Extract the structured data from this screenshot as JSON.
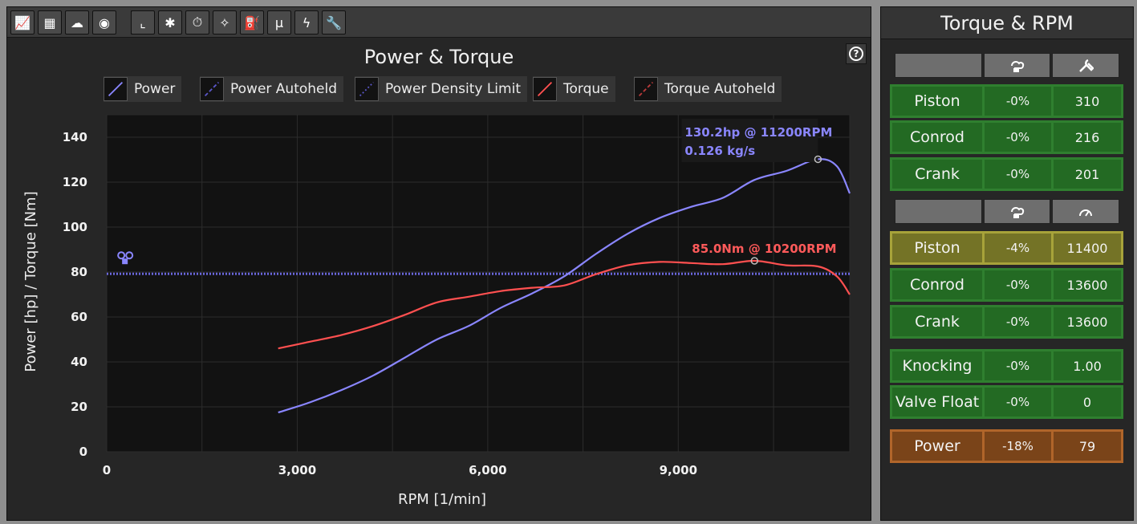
{
  "toolbar": {
    "buttons": [
      {
        "icon": "line-chart-icon",
        "glyph": "📈",
        "state": "active"
      },
      {
        "icon": "grid-chart-icon",
        "glyph": "▦",
        "state": "normal"
      },
      {
        "icon": "turbo-icon",
        "glyph": "☁",
        "state": "normal"
      },
      {
        "icon": "turbine-icon",
        "glyph": "◉",
        "state": "dim"
      },
      {
        "icon": "axes-chart-icon",
        "glyph": "⌞",
        "state": "active"
      },
      {
        "icon": "bug-icon",
        "glyph": "✱",
        "state": "normal"
      },
      {
        "icon": "stopwatch-icon",
        "glyph": "⏱",
        "state": "normal"
      },
      {
        "icon": "spark-plug-icon",
        "glyph": "✧",
        "state": "normal"
      },
      {
        "icon": "fuel-pump-icon",
        "glyph": "⛽",
        "state": "normal"
      },
      {
        "icon": "mu-icon",
        "glyph": "μ",
        "state": "normal"
      },
      {
        "icon": "lightning-icon",
        "glyph": "ϟ",
        "state": "normal"
      },
      {
        "icon": "wrench-icon",
        "glyph": "🔧",
        "state": "normal"
      }
    ]
  },
  "help": {
    "glyph": "?"
  },
  "chart": {
    "title": "Power & Torque"
  },
  "legend": [
    {
      "label": "Power",
      "color": "#8a86ff",
      "style": "solid"
    },
    {
      "label": "Power Autoheld",
      "color": "#5a56c8",
      "style": "dashed"
    },
    {
      "label": "Power Density Limit",
      "color": "#5a56c8",
      "style": "dotted"
    },
    {
      "label": "Torque",
      "color": "#ff5050",
      "style": "solid"
    },
    {
      "label": "Torque Autoheld",
      "color": "#b83a3a",
      "style": "dashed"
    }
  ],
  "chart_data": {
    "type": "line",
    "xlabel": "RPM [1/min]",
    "ylabel": "Power [hp] / Torque [Nm]",
    "xlim": [
      0,
      11700
    ],
    "ylim": [
      0,
      150
    ],
    "xticks": [
      "0",
      "3,000",
      "6,000",
      "9,000"
    ],
    "xtick_values": [
      0,
      3000,
      6000,
      9000
    ],
    "xgrid_values": [
      0,
      1500,
      3000,
      4500,
      6000,
      7500,
      9000,
      10500
    ],
    "yticks": [
      "0",
      "20",
      "40",
      "60",
      "80",
      "100",
      "120",
      "140"
    ],
    "ytick_values": [
      0,
      20,
      40,
      60,
      80,
      100,
      120,
      140
    ],
    "grid": true,
    "series": [
      {
        "name": "Power",
        "color": "#8a86ff",
        "x": [
          2700,
          3200,
          3700,
          4200,
          4700,
          5200,
          5700,
          6200,
          6700,
          7200,
          7700,
          8200,
          8700,
          9200,
          9700,
          10200,
          10700,
          11200,
          11500,
          11700
        ],
        "y": [
          17.5,
          22,
          27.5,
          34,
          42,
          50,
          56,
          64,
          70.5,
          78,
          88,
          97,
          104,
          109,
          113,
          121,
          125,
          130.2,
          127,
          115
        ]
      },
      {
        "name": "Torque",
        "color": "#ff5050",
        "x": [
          2700,
          3200,
          3700,
          4200,
          4700,
          5200,
          5700,
          6200,
          6700,
          7200,
          7700,
          8200,
          8700,
          9200,
          9700,
          10200,
          10700,
          11200,
          11500,
          11700
        ],
        "y": [
          46,
          49,
          52,
          56,
          61,
          66.5,
          69,
          71.5,
          73,
          74,
          79,
          83,
          84.5,
          84,
          83.5,
          85,
          83,
          82.5,
          78,
          70
        ]
      }
    ],
    "limit_line": {
      "name": "Power Density Limit",
      "y": 79.2,
      "color": "#6a66dd"
    },
    "annotations": [
      {
        "text": "130.2hp @ 11200RPM",
        "x": 11200,
        "y": 130.2,
        "color": "#8a86ff"
      },
      {
        "text": "0.126 kg/s",
        "color": "#8a86ff"
      },
      {
        "text": "85.0Nm @ 10200RPM",
        "x": 10200,
        "y": 85.0,
        "color": "#ff5a5a"
      }
    ],
    "limit_marker": {
      "icon": "piston-lock-icon",
      "x": 280,
      "y": 86
    }
  },
  "side": {
    "title": "Torque & RPM",
    "header1_icons": [
      "engine-torque-icon",
      "wrench-icon"
    ],
    "header2_icons": [
      "engine-torque-icon",
      "tachometer-icon"
    ],
    "rows": [
      {
        "name": "Piston",
        "pct": "-0%",
        "value": "310",
        "status": "green"
      },
      {
        "name": "Conrod",
        "pct": "-0%",
        "value": "216",
        "status": "green"
      },
      {
        "name": "Crank",
        "pct": "-0%",
        "value": "201",
        "status": "green"
      },
      {
        "name": "Piston",
        "pct": "-4%",
        "value": "11400",
        "status": "yellow"
      },
      {
        "name": "Conrod",
        "pct": "-0%",
        "value": "13600",
        "status": "green"
      },
      {
        "name": "Crank",
        "pct": "-0%",
        "value": "13600",
        "status": "green"
      },
      {
        "name": "Knocking",
        "pct": "-0%",
        "value": "1.00",
        "status": "green"
      },
      {
        "name": "Valve Float",
        "pct": "-0%",
        "value": "0",
        "status": "green"
      },
      {
        "name": "Power",
        "pct": "-18%",
        "value": "79",
        "status": "orange"
      }
    ]
  }
}
